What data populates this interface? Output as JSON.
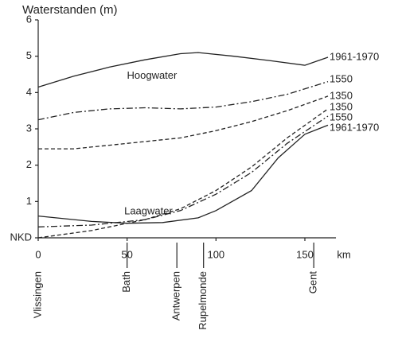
{
  "chart_data": {
    "type": "line",
    "title": "Waterstanden (m)",
    "x_unit": "km",
    "xlim": [
      0,
      163
    ],
    "xticks": [
      0,
      50,
      100,
      150
    ],
    "ylim": [
      0,
      6
    ],
    "yticks": [
      {
        "value": 0,
        "label": "NKD"
      },
      1,
      2,
      3,
      4,
      5,
      6
    ],
    "annotations": [
      {
        "text": "Hoogwater",
        "x": 64,
        "y": 4.45
      },
      {
        "text": "Laagwater",
        "x": 62,
        "y": 0.72
      }
    ],
    "locations": [
      {
        "name": "Vlissingen",
        "x": 0
      },
      {
        "name": "Bath",
        "x": 50
      },
      {
        "name": "Antwerpen",
        "x": 78
      },
      {
        "name": "Rupelmonde",
        "x": 93
      },
      {
        "name": "Gent",
        "x": 155
      }
    ],
    "series": [
      {
        "name": "1961-1970",
        "group": "Hoogwater",
        "color": "#222",
        "dash": "none",
        "x": [
          0,
          20,
          40,
          60,
          80,
          90,
          110,
          130,
          150,
          163
        ],
        "values": [
          4.15,
          4.45,
          4.7,
          4.9,
          5.07,
          5.1,
          5.0,
          4.88,
          4.75,
          4.97
        ]
      },
      {
        "name": "1550",
        "group": "Hoogwater",
        "color": "#222",
        "dash": "8 3 2 3",
        "x": [
          0,
          20,
          40,
          60,
          80,
          100,
          120,
          140,
          163
        ],
        "values": [
          3.25,
          3.45,
          3.55,
          3.58,
          3.55,
          3.6,
          3.75,
          3.95,
          4.3
        ]
      },
      {
        "name": "1350",
        "group": "Hoogwater",
        "color": "#222",
        "dash": "5 3",
        "x": [
          0,
          20,
          40,
          60,
          80,
          100,
          120,
          140,
          163
        ],
        "values": [
          2.45,
          2.45,
          2.55,
          2.65,
          2.75,
          2.95,
          3.2,
          3.5,
          3.9
        ]
      },
      {
        "name": "1350",
        "group": "Laagwater",
        "color": "#222",
        "dash": "5 3",
        "x": [
          0,
          30,
          60,
          80,
          100,
          120,
          140,
          163
        ],
        "values": [
          0,
          0.2,
          0.5,
          0.8,
          1.3,
          1.95,
          2.75,
          3.55
        ]
      },
      {
        "name": "1550",
        "group": "Laagwater",
        "color": "#222",
        "dash": "8 3 2 3",
        "x": [
          0,
          30,
          60,
          80,
          100,
          120,
          140,
          163
        ],
        "values": [
          0.3,
          0.35,
          0.5,
          0.75,
          1.2,
          1.8,
          2.6,
          3.35
        ]
      },
      {
        "name": "1961-1970",
        "group": "Laagwater",
        "color": "#222",
        "dash": "none",
        "x": [
          0,
          10,
          30,
          50,
          70,
          90,
          100,
          120,
          135,
          150,
          163
        ],
        "values": [
          0.6,
          0.55,
          0.45,
          0.4,
          0.42,
          0.55,
          0.75,
          1.3,
          2.2,
          2.85,
          3.1
        ]
      }
    ]
  }
}
